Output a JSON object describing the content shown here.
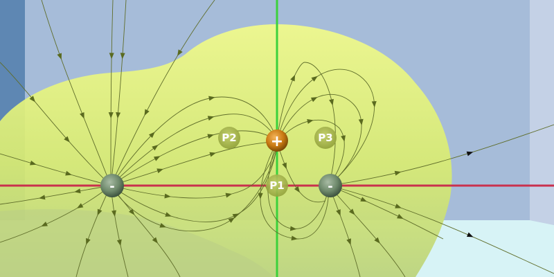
{
  "scene": {
    "colors": {
      "left_wall": "#5e87b3",
      "back_wall": "#a6bcd9",
      "right_wall": "#c4d1e6",
      "floor": "#d7f3f6",
      "surface": "#e2f27a",
      "field_line": "#5f6d2a",
      "arrow_inside": "#5a6a1f",
      "arrow_outside": "#111111",
      "x_axis": "#c9304d",
      "y_axis": "#3bd13b",
      "positive_charge": "#c97a12",
      "negative_charge": "#6f8a6c"
    }
  },
  "charges": [
    {
      "id": "positive",
      "label": "+",
      "icon": "positive-charge-sphere"
    },
    {
      "id": "negative-left",
      "label": "-",
      "icon": "negative-charge-sphere"
    },
    {
      "id": "negative-right",
      "label": "-",
      "icon": "negative-charge-sphere"
    }
  ],
  "probes": [
    {
      "id": "p1",
      "label": "P1"
    },
    {
      "id": "p2",
      "label": "P2"
    },
    {
      "id": "p3",
      "label": "P3"
    }
  ]
}
